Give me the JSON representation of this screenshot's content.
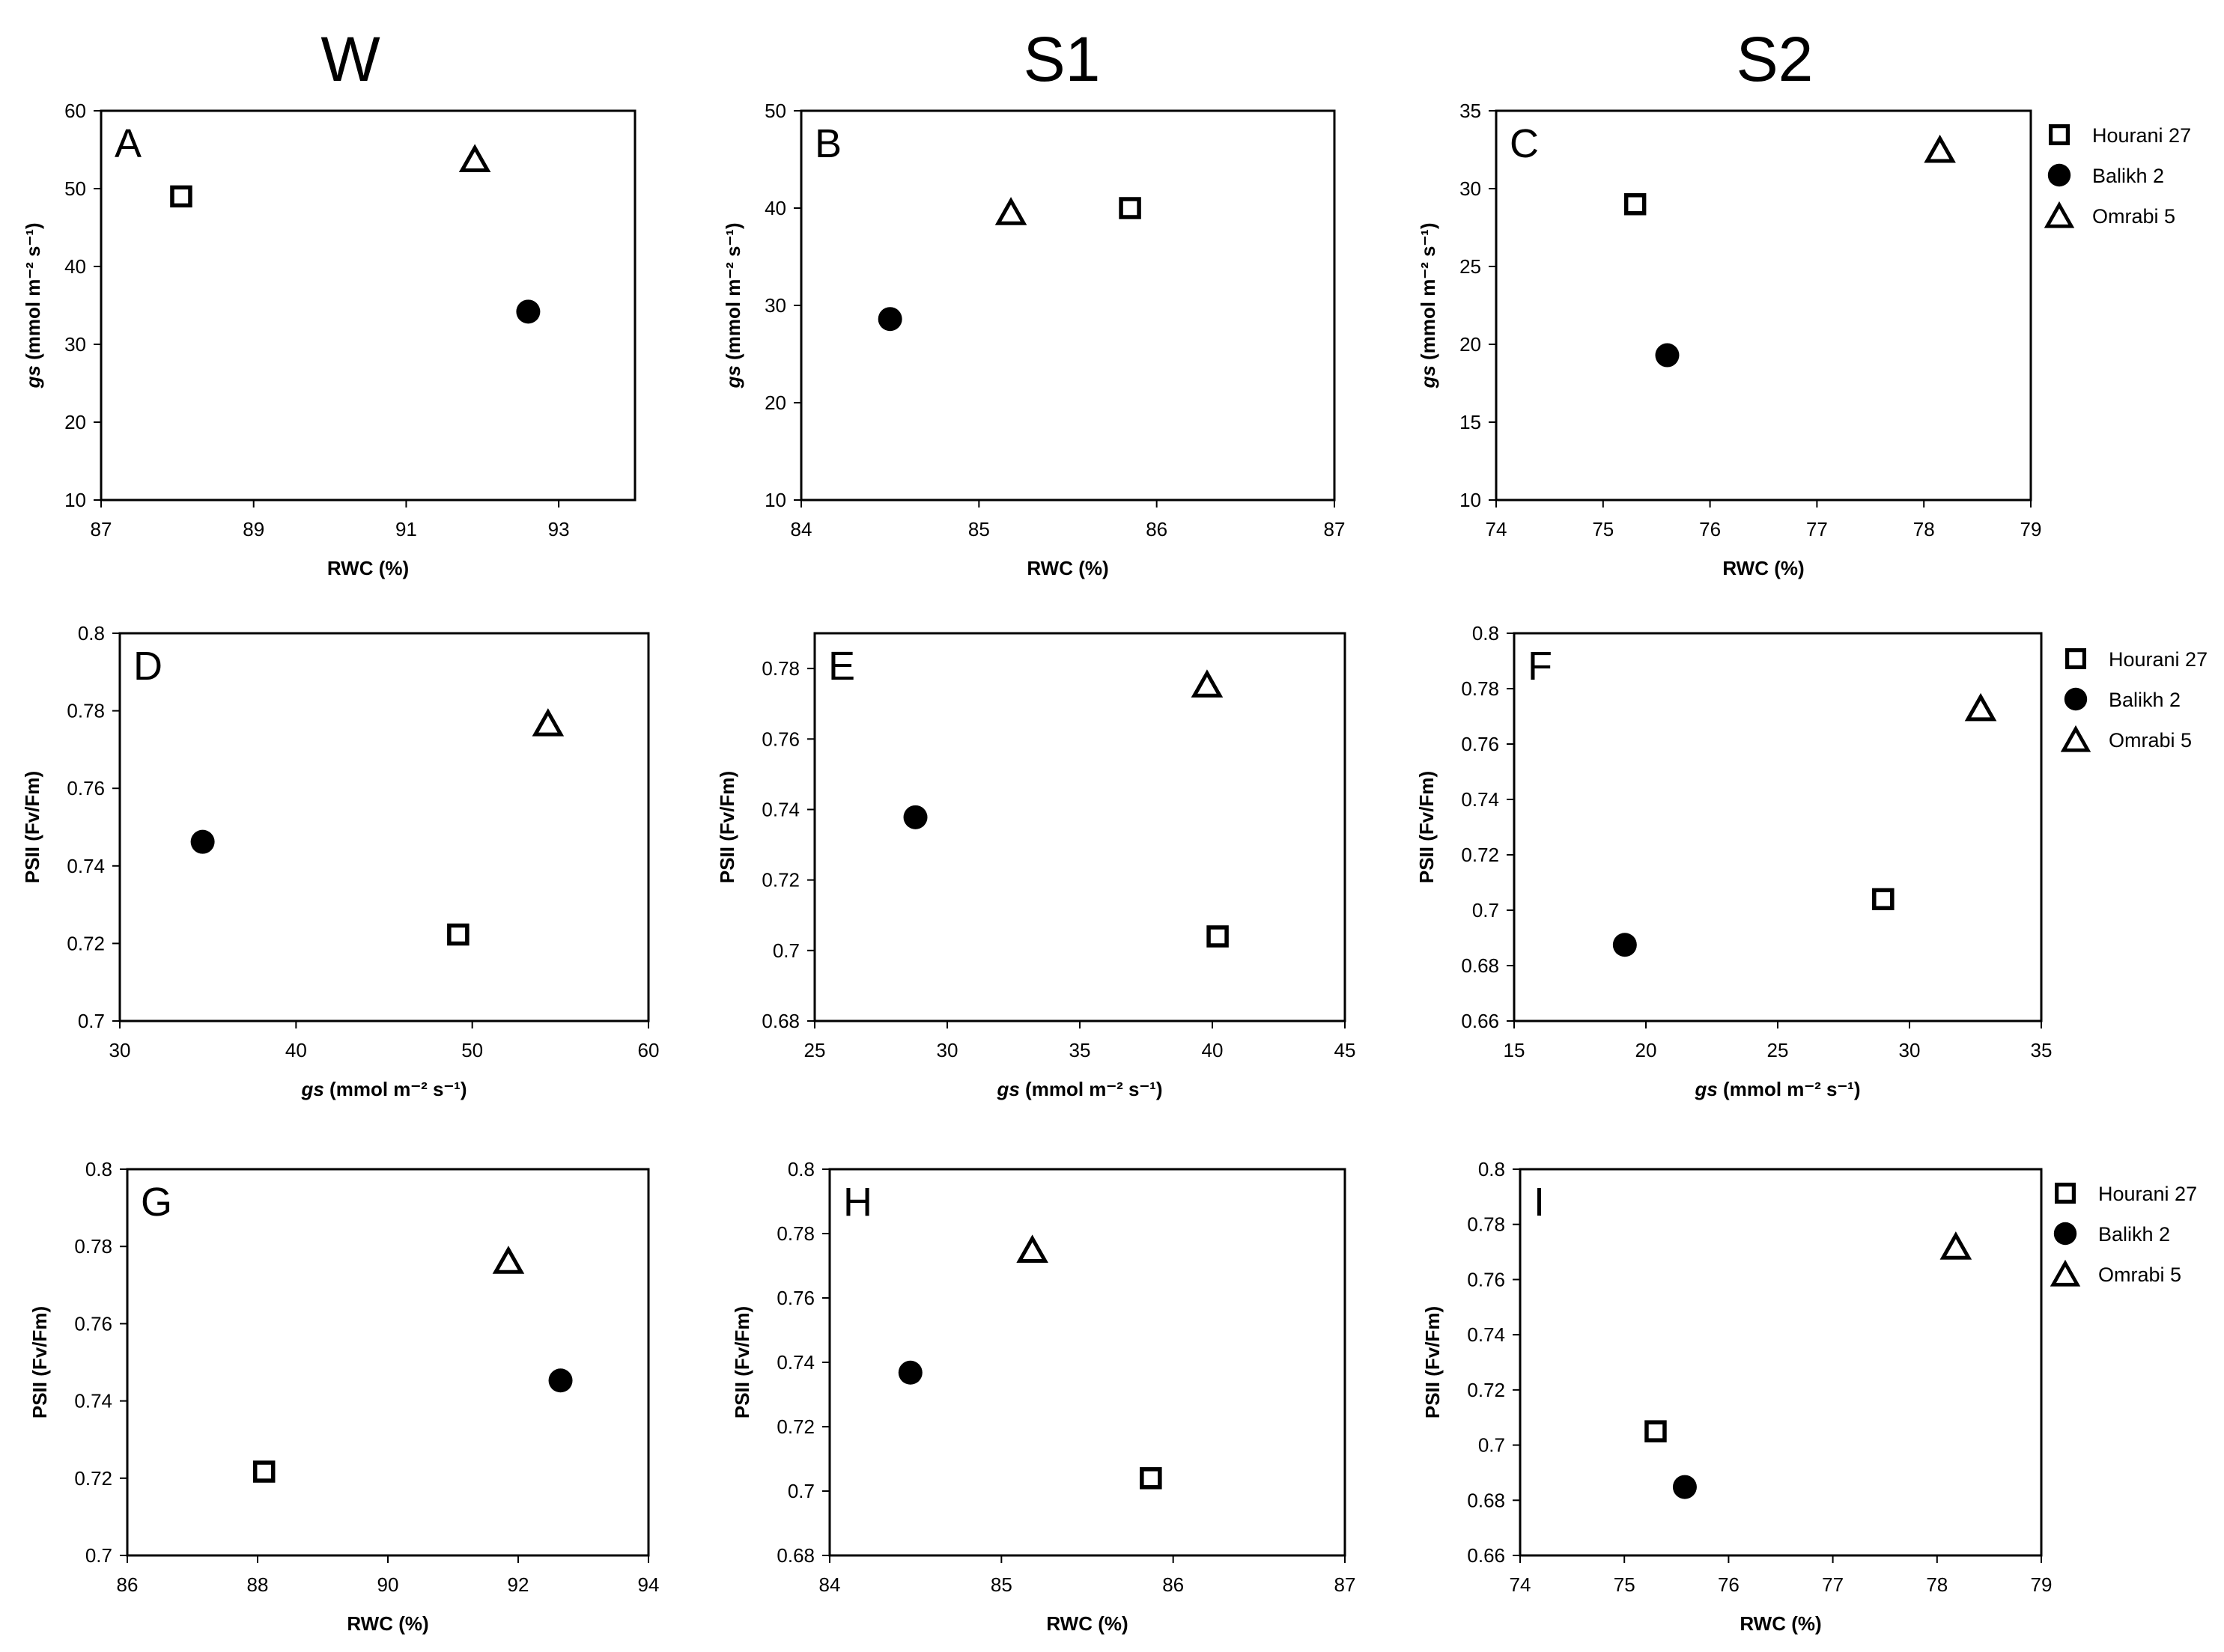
{
  "column_titles": [
    "W",
    "S1",
    "S2"
  ],
  "legend": {
    "entries": [
      {
        "name": "Hourani 27",
        "marker": "square"
      },
      {
        "name": "Balikh 2",
        "marker": "circle"
      },
      {
        "name": "Omrabi 5",
        "marker": "triangle"
      }
    ]
  },
  "chart_data": [
    {
      "id": "A",
      "type": "scatter",
      "title": "A",
      "xlabel": "RWC (%)",
      "ylabel_italic": "gs",
      "ylabel": " (mmol m⁻² s⁻¹)",
      "xlim": [
        87,
        94
      ],
      "ylim": [
        10,
        60
      ],
      "xticks": [
        87,
        89,
        91,
        93
      ],
      "yticks": [
        10,
        20,
        30,
        40,
        50,
        60
      ],
      "series": [
        {
          "name": "Hourani 27",
          "x": 88.05,
          "y": 49
        },
        {
          "name": "Balikh 2",
          "x": 92.6,
          "y": 34.2
        },
        {
          "name": "Omrabi 5",
          "x": 91.9,
          "y": 53.8
        }
      ]
    },
    {
      "id": "B",
      "type": "scatter",
      "title": "B",
      "xlabel": "RWC (%)",
      "ylabel_italic": "gs",
      "ylabel": " (mmol m⁻² s⁻¹)",
      "xlim": [
        84,
        87
      ],
      "ylim": [
        10,
        50
      ],
      "xticks": [
        84,
        85,
        86,
        87
      ],
      "yticks": [
        10,
        20,
        30,
        40,
        50
      ],
      "series": [
        {
          "name": "Hourani 27",
          "x": 85.85,
          "y": 40
        },
        {
          "name": "Balikh 2",
          "x": 84.5,
          "y": 28.6
        },
        {
          "name": "Omrabi 5",
          "x": 85.18,
          "y": 39.6
        }
      ]
    },
    {
      "id": "C",
      "type": "scatter",
      "title": "C",
      "xlabel": "RWC (%)",
      "ylabel_italic": "gs",
      "ylabel": " (mmol m⁻² s⁻¹)",
      "xlim": [
        74,
        79
      ],
      "ylim": [
        10,
        35
      ],
      "xticks": [
        74,
        75,
        76,
        77,
        78,
        79
      ],
      "yticks": [
        10,
        15,
        20,
        25,
        30,
        35
      ],
      "series": [
        {
          "name": "Hourani 27",
          "x": 75.3,
          "y": 29
        },
        {
          "name": "Balikh 2",
          "x": 75.6,
          "y": 19.3
        },
        {
          "name": "Omrabi 5",
          "x": 78.15,
          "y": 32.5
        }
      ]
    },
    {
      "id": "D",
      "type": "scatter",
      "title": "D",
      "xlabel_italic": "gs",
      "xlabel": " (mmol m⁻² s⁻¹)",
      "ylabel": "PSII (Fv/Fm)",
      "xlim": [
        30,
        60
      ],
      "ylim": [
        0.7,
        0.8
      ],
      "xticks": [
        30,
        40,
        50,
        60
      ],
      "yticks": [
        0.7,
        0.72,
        0.74,
        0.76,
        0.78,
        0.8
      ],
      "series": [
        {
          "name": "Hourani 27",
          "x": 49.2,
          "y": 0.7223
        },
        {
          "name": "Balikh 2",
          "x": 34.7,
          "y": 0.7462
        },
        {
          "name": "Omrabi 5",
          "x": 54.3,
          "y": 0.7768
        }
      ]
    },
    {
      "id": "E",
      "type": "scatter",
      "title": "E",
      "xlabel_italic": "gs",
      "xlabel": " (mmol m⁻² s⁻¹)",
      "ylabel": "PSII (Fv/Fm)",
      "xlim": [
        25,
        45
      ],
      "ylim": [
        0.68,
        0.79
      ],
      "xticks": [
        25,
        30,
        35,
        40,
        45
      ],
      "yticks": [
        0.68,
        0.7,
        0.72,
        0.74,
        0.76,
        0.78
      ],
      "series": [
        {
          "name": "Hourani 27",
          "x": 40.2,
          "y": 0.704
        },
        {
          "name": "Balikh 2",
          "x": 28.8,
          "y": 0.7378
        },
        {
          "name": "Omrabi 5",
          "x": 39.8,
          "y": 0.7755
        }
      ]
    },
    {
      "id": "F",
      "type": "scatter",
      "title": "F",
      "xlabel_italic": "gs",
      "xlabel": " (mmol m⁻² s⁻¹)",
      "ylabel": "PSII (Fv/Fm)",
      "xlim": [
        15,
        35
      ],
      "ylim": [
        0.66,
        0.8
      ],
      "xticks": [
        15,
        20,
        25,
        30,
        35
      ],
      "yticks": [
        0.66,
        0.68,
        0.7,
        0.72,
        0.74,
        0.76,
        0.78,
        0.8
      ],
      "series": [
        {
          "name": "Hourani 27",
          "x": 29,
          "y": 0.704
        },
        {
          "name": "Balikh 2",
          "x": 19.2,
          "y": 0.6875
        },
        {
          "name": "Omrabi 5",
          "x": 32.7,
          "y": 0.773
        }
      ]
    },
    {
      "id": "G",
      "type": "scatter",
      "title": "G",
      "xlabel": "RWC (%)",
      "ylabel": "PSII (Fv/Fm)",
      "xlim": [
        86,
        94
      ],
      "ylim": [
        0.7,
        0.8
      ],
      "xticks": [
        86,
        88,
        90,
        92,
        94
      ],
      "yticks": [
        0.7,
        0.72,
        0.74,
        0.76,
        0.78,
        0.8
      ],
      "series": [
        {
          "name": "Hourani 27",
          "x": 88.1,
          "y": 0.7217
        },
        {
          "name": "Balikh 2",
          "x": 92.65,
          "y": 0.7453
        },
        {
          "name": "Omrabi 5",
          "x": 91.85,
          "y": 0.7763
        }
      ]
    },
    {
      "id": "H",
      "type": "scatter",
      "title": "H",
      "xlabel": "RWC (%)",
      "ylabel": "PSII (Fv/Fm)",
      "xlim": [
        84,
        87
      ],
      "ylim": [
        0.68,
        0.8
      ],
      "xticks": [
        84,
        85,
        86,
        87
      ],
      "yticks": [
        0.68,
        0.7,
        0.72,
        0.74,
        0.76,
        0.78,
        0.8
      ],
      "series": [
        {
          "name": "Hourani 27",
          "x": 85.87,
          "y": 0.704
        },
        {
          "name": "Balikh 2",
          "x": 84.47,
          "y": 0.7368
        },
        {
          "name": "Omrabi 5",
          "x": 85.18,
          "y": 0.775
        }
      ]
    },
    {
      "id": "I",
      "type": "scatter",
      "title": "I",
      "xlabel": "RWC (%)",
      "ylabel": "PSII (Fv/Fm)",
      "xlim": [
        74,
        79
      ],
      "ylim": [
        0.66,
        0.8
      ],
      "xticks": [
        74,
        75,
        76,
        77,
        78,
        79
      ],
      "yticks": [
        0.66,
        0.68,
        0.7,
        0.72,
        0.74,
        0.76,
        0.78,
        0.8
      ],
      "series": [
        {
          "name": "Hourani 27",
          "x": 75.3,
          "y": 0.705
        },
        {
          "name": "Balikh 2",
          "x": 75.58,
          "y": 0.6848
        },
        {
          "name": "Omrabi 5",
          "x": 78.18,
          "y": 0.772
        }
      ]
    }
  ]
}
